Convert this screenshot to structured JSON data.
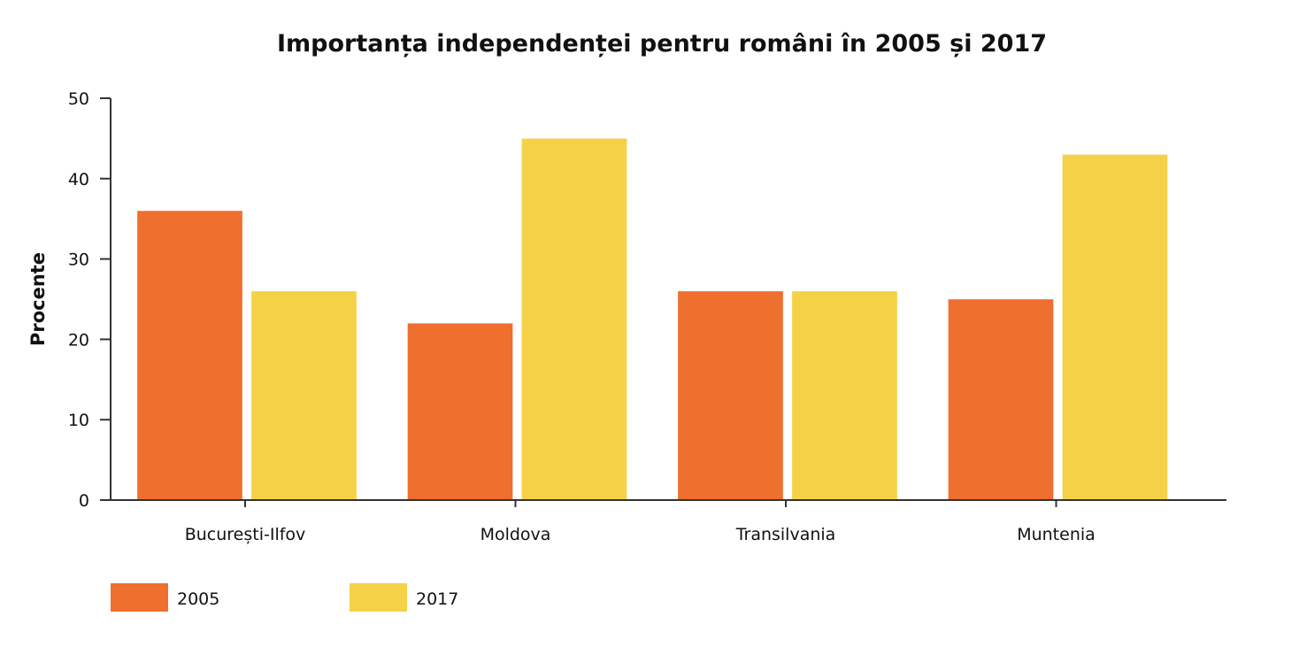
{
  "chart_data": {
    "type": "bar",
    "title": "Importanța independenței pentru români în 2005 și 2017",
    "xlabel": "",
    "ylabel": "Procente",
    "ylim": [
      0,
      50
    ],
    "yticks": [
      0,
      10,
      20,
      30,
      40,
      50
    ],
    "categories": [
      "București-Ilfov",
      "Moldova",
      "Transilvania",
      "Muntenia"
    ],
    "series": [
      {
        "name": "2005",
        "values": [
          36,
          22,
          26,
          25
        ],
        "color": "#EF6F2E"
      },
      {
        "name": "2017",
        "values": [
          26,
          45,
          26,
          43
        ],
        "color": "#F5D147"
      }
    ],
    "grid": false,
    "legend_position": "bottom-left"
  }
}
